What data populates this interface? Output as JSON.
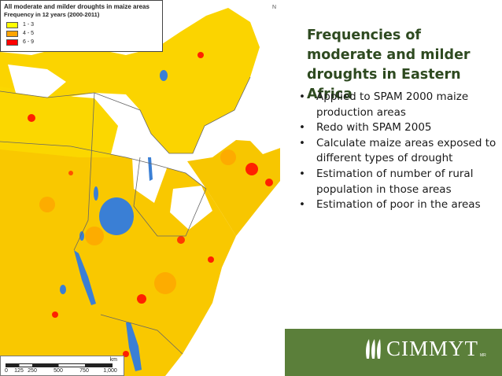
{
  "legend": {
    "title": "All moderate and milder droughts in maize areas",
    "subtitle": "Frequency in 12 years (2000-2011)",
    "classes": [
      {
        "label": "1 - 3",
        "color": "#ffff00"
      },
      {
        "label": "4 - 5",
        "color": "#ffa500"
      },
      {
        "label": "6 - 9",
        "color": "#ff0000"
      }
    ]
  },
  "north_arrow": {
    "label": "N"
  },
  "scale_bar": {
    "unit": "km",
    "ticks": [
      "0",
      "125",
      "250",
      "500",
      "750",
      "1,000"
    ]
  },
  "slide": {
    "title": "Frequencies of moderate and milder droughts in Eastern Africa",
    "bullets": [
      "Applied to SPAM 2000 maize production areas",
      "Redo with SPAM 2005",
      "Calculate maize areas exposed to different types of drought",
      "Estimation of number of rural population in those areas",
      "Estimation of poor in the areas"
    ],
    "bullet_glyph": "•"
  },
  "logo": {
    "text": "CIMMYT",
    "superscript": "MR",
    "icon": "maize-ears-icon"
  },
  "colors": {
    "title_green": "#2e4a20",
    "band_green": "#5b7f3a",
    "water_blue": "#3a7fd5",
    "border_gray": "#666666"
  }
}
